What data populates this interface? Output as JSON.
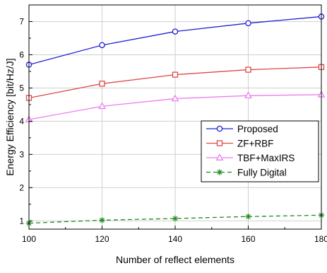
{
  "chart_data": {
    "type": "line",
    "title": "",
    "xlabel": "Number of reflect elements",
    "ylabel": "Energy Efficiency [bit/Hz/J]",
    "x": [
      100,
      120,
      140,
      160,
      180
    ],
    "xlim": [
      100,
      180
    ],
    "ylim": [
      0.75,
      7.5
    ],
    "xticks": [
      "100",
      "120",
      "140",
      "160",
      "180"
    ],
    "yticks": [
      "1",
      "2",
      "3",
      "4",
      "5",
      "6",
      "7"
    ],
    "grid": true,
    "legend_position": "bottom-right",
    "series": [
      {
        "name": "Proposed",
        "values": [
          5.7,
          6.29,
          6.7,
          6.95,
          7.15
        ],
        "color": "#1f1fd6",
        "marker": "circle",
        "line": "solid"
      },
      {
        "name": "ZF+RBF",
        "values": [
          4.7,
          5.13,
          5.4,
          5.55,
          5.63
        ],
        "color": "#e04848",
        "marker": "square",
        "line": "solid"
      },
      {
        "name": "TBF+MaxIRS",
        "values": [
          4.05,
          4.45,
          4.68,
          4.77,
          4.8
        ],
        "color": "#ee7cee",
        "marker": "triangle",
        "line": "solid"
      },
      {
        "name": "Fully Digital",
        "values": [
          0.93,
          1.02,
          1.07,
          1.13,
          1.17
        ],
        "color": "#1e8a1e",
        "marker": "asterisk",
        "line": "dashed"
      }
    ]
  }
}
